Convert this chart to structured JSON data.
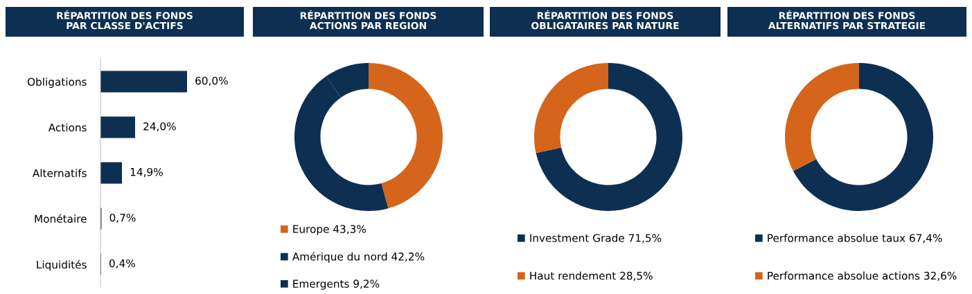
{
  "chart_data": [
    {
      "type": "bar",
      "title": "RÉPARTITION DES FONDS\nPAR CLASSE D'ACTIFS",
      "orientation": "horizontal",
      "categories": [
        "Obligations",
        "Actions",
        "Alternatifs",
        "Monétaire",
        "Liquidités"
      ],
      "values": [
        60.0,
        24.0,
        14.9,
        0.7,
        0.4
      ],
      "value_labels": [
        "60,0%",
        "24,0%",
        "14,9%",
        "0,7%",
        "0,4%"
      ],
      "color": "#0d2f52",
      "tick_labels": "y",
      "grid": false
    },
    {
      "type": "donut",
      "title": "RÉPARTITION DES FONDS\nACTIONS PAR REGION",
      "categories": [
        "Europe",
        "Amérique du nord",
        "Emergents"
      ],
      "values": [
        43.3,
        42.2,
        9.2
      ],
      "value_labels": [
        "43,3%",
        "42,2%",
        "9,2%"
      ],
      "colors": [
        "#d4651a",
        "#0d2f52",
        "#0d2f52"
      ],
      "legend": "bottom"
    },
    {
      "type": "donut",
      "title": "RÉPARTITION DES FONDS\nOBLIGATAIRES PAR NATURE",
      "categories": [
        "Investment Grade",
        "Haut rendement"
      ],
      "values": [
        71.5,
        28.5
      ],
      "value_labels": [
        "71,5%",
        "28,5%"
      ],
      "colors": [
        "#0d2f52",
        "#d4651a"
      ],
      "legend": "bottom"
    },
    {
      "type": "donut",
      "title": "RÉPARTITION DES FONDS\nALTERNATIFS PAR STRATEGIE",
      "categories": [
        "Performance absolue taux",
        "Performance absolue actions"
      ],
      "values": [
        67.4,
        32.6
      ],
      "value_labels": [
        "67,4%",
        "32,6%"
      ],
      "colors": [
        "#0d2f52",
        "#d4651a"
      ],
      "legend": "bottom"
    }
  ]
}
